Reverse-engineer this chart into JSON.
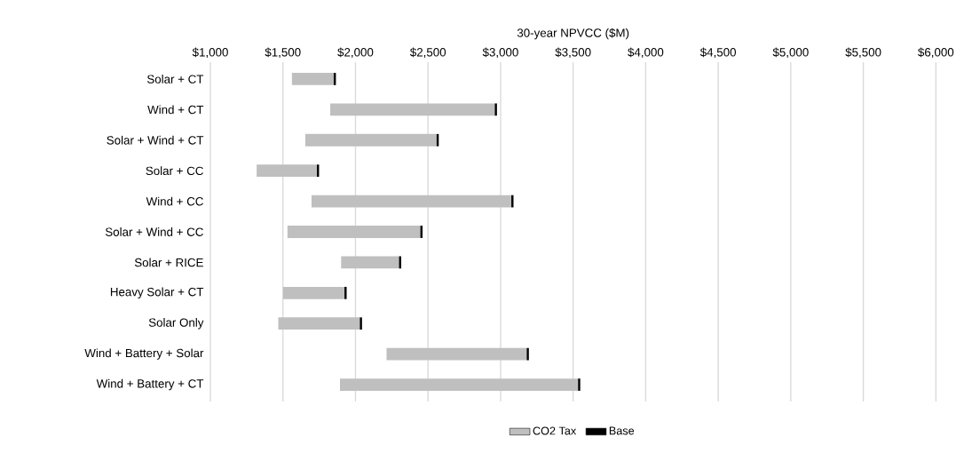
{
  "chart_data": {
    "type": "bar",
    "orientation": "horizontal",
    "xlabel": "30-year NPVCC ($M)",
    "categories": [
      "Solar + CT",
      "Wind + CT",
      "Solar + Wind + CT",
      "Solar + CC",
      "Wind + CC",
      "Solar + Wind + CC",
      "Solar + RICE",
      "Heavy Solar + CT",
      "Solar Only",
      "Wind + Battery + Solar",
      "Wind + Battery + CT"
    ],
    "series": [
      {
        "name": "CO2 Tax",
        "color": "#bfbfbf",
        "base": [
          1562,
          1826,
          1654,
          1319,
          1697,
          1531,
          1901,
          1501,
          1468,
          2214,
          1893
        ],
        "values": [
          288,
          1134,
          905,
          415,
          1377,
          916,
          399,
          423,
          562,
          966,
          1641
        ]
      },
      {
        "name": "Base",
        "color": "#000000",
        "base": [
          1850,
          2960,
          2559,
          1734,
          3074,
          2447,
          2300,
          1924,
          2030,
          3180,
          3534
        ],
        "values": [
          15,
          15,
          15,
          15,
          15,
          15,
          15,
          15,
          15,
          15,
          15
        ]
      }
    ],
    "xlim": [
      1000,
      6000
    ],
    "xticks": [
      {
        "value": 1000,
        "label": "$1,000"
      },
      {
        "value": 1500,
        "label": "$1,500"
      },
      {
        "value": 2000,
        "label": "$2,000"
      },
      {
        "value": 2500,
        "label": "$2,500"
      },
      {
        "value": 3000,
        "label": "$3,000"
      },
      {
        "value": 3500,
        "label": "$3,500"
      },
      {
        "value": 4000,
        "label": "$4,000"
      },
      {
        "value": 4500,
        "label": "$4,500"
      },
      {
        "value": 5000,
        "label": "$5,000"
      },
      {
        "value": 5500,
        "label": "$5,500"
      },
      {
        "value": 6000,
        "label": "$6,000"
      }
    ],
    "grid": "x",
    "legend": "bottom"
  }
}
